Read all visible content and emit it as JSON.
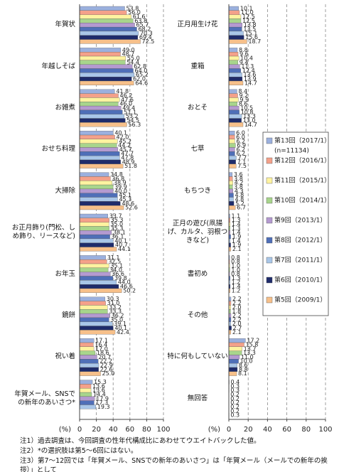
{
  "chart_data": [
    {
      "type": "bar",
      "orientation": "horizontal",
      "xlabel": "(%)",
      "xlim": [
        0,
        100
      ],
      "xticks": [
        0,
        20,
        40,
        60,
        80,
        100
      ],
      "grid": true,
      "categories": [
        "年賀状",
        "年越しそば",
        "お雑煮",
        "おせち料理",
        "大掃除",
        "お正月飾り(門松、し\nめ飾り、リースなど)",
        "お年玉",
        "鏡餅",
        "祝い着",
        "年賀メール、SNSで\nの新年のあいさつ*"
      ],
      "series": [
        {
          "color": "#9bb0de",
          "values": [
            53.8,
            49.0,
            41.8,
            40.1,
            34.8,
            33.7,
            31.1,
            30.3,
            17.1,
            15.3
          ],
          "value_labels": [
            "53.8",
            "49.0",
            "41.8",
            "40.1",
            "34.8",
            "33.7",
            "31.1",
            "30.3",
            "17.1",
            "15.3"
          ]
        },
        {
          "color": "#f4a18a",
          "values": [
            56.0,
            48.7,
            46.2,
            42.0,
            36.8,
            35.3,
            32.5,
            31.0,
            16.4,
            13.6
          ],
          "value_labels": [
            "56.0",
            "48.7",
            "46.2",
            "42.0",
            "36.8",
            "35.3",
            "32.5",
            "31.0",
            "16.4",
            "13.6"
          ]
        },
        {
          "color": "#fff3a0",
          "values": [
            61.6,
            55.0,
            47.6,
            45.2,
            38.9,
            35.0,
            35.1,
            33.2,
            17.0,
            13.6
          ],
          "value_labels": [
            "61.6",
            "55.0",
            "47.6",
            "45.2",
            "38.9",
            "35.0",
            "35.1",
            "33.2",
            "17.0",
            "13.6"
          ]
        },
        {
          "color": "#a8d58c",
          "values": [
            63.8,
            54.4,
            46.0,
            44.2,
            39.9,
            35.3,
            34.0,
            33.3,
            18.6,
            14.4
          ],
          "value_labels": [
            "63.8",
            "54.4",
            "46.0",
            "44.2",
            "39.9",
            "35.3",
            "34.0",
            "33.3",
            "18.6",
            "14.4"
          ]
        },
        {
          "color": "#b49ad0",
          "values": [
            65.7,
            62.8,
            49.4,
            45.7,
            40.0,
            38.1,
            36.6,
            36.2,
            20.7,
            17.9
          ],
          "value_labels": [
            "65.7",
            "62.8",
            "49.4",
            "45.7",
            "40.0",
            "38.1",
            "36.6",
            "36.2",
            "20.7",
            "17.9"
          ]
        },
        {
          "color": "#4f6fb8",
          "values": [
            68.2,
            64.0,
            51.1,
            47.7,
            45.1,
            36.1,
            39.8,
            35.0,
            22.2,
            17.3
          ],
          "value_labels": [
            "68.2",
            "64.0",
            "51.1",
            "47.7",
            "45.1",
            "36.1",
            "39.8",
            "35.0",
            "22.2",
            "17.3"
          ]
        },
        {
          "color": "#a9c6e8",
          "values": [
            70.3,
            65.2,
            53.2,
            47.8,
            45.3,
            40.1,
            44.0,
            39.1,
            22.9,
            19.3
          ],
          "value_labels": [
            "70.3",
            "65.2",
            "53.2",
            "47.8",
            "45.3",
            "40.1",
            "44.0",
            "39.1",
            "22.9",
            "19.3"
          ]
        },
        {
          "color": "#1f2c6b",
          "values": [
            69.4,
            62.0,
            54.5,
            48.9,
            48.6,
            40.7,
            46.6,
            40.1,
            22.6,
            null
          ],
          "value_labels": [
            "69.4",
            "62.0",
            "54.5",
            "48.9",
            "48.6",
            "40.7",
            "46.6",
            "40.1",
            "22.6",
            null
          ]
        },
        {
          "color": "#f7c08a",
          "values": [
            72.5,
            64.6,
            56.3,
            51.8,
            52.6,
            44.1,
            50.2,
            42.4,
            25.0,
            null
          ],
          "value_labels": [
            "72.5",
            "64.6",
            "56.3",
            "51.8",
            "52.6",
            "44.1",
            "50.2",
            "42.4",
            "25.0",
            null
          ]
        }
      ]
    },
    {
      "type": "bar",
      "orientation": "horizontal",
      "xlabel": "(%)",
      "xlim": [
        0,
        100
      ],
      "xticks": [
        0,
        20,
        40,
        60,
        80,
        100
      ],
      "grid": true,
      "legend": "right",
      "legend_note": "(n=11134)",
      "categories": [
        "正月用生け花",
        "重箱",
        "おとそ",
        "七草",
        "もちつき",
        "正月の遊び(凧揚\nげ、カルタ、羽根つ\nきなど)",
        "書初め",
        "その他",
        "特に何もしていない",
        "無回答"
      ],
      "series": [
        {
          "name": "第13回（2017/1）",
          "color": "#9bb0de",
          "values": [
            10.1,
            8.8,
            8.4,
            6.0,
            3.6,
            1.1,
            0.8,
            2.2,
            17.2,
            0.4
          ],
          "value_labels": [
            "10.1",
            "8.8",
            "8.4",
            "6.0",
            "3.6",
            "1.1",
            "0.8",
            "2.2",
            "17.2",
            "0.4"
          ]
        },
        {
          "name": "第12回（2016/1）",
          "color": "#f4a18a",
          "values": [
            11.0,
            9.6,
            9.2,
            6.0,
            3.8,
            1.3,
            0.8,
            2.2,
            15.8,
            0.3
          ],
          "value_labels": [
            "11.0",
            "9.6",
            "9.2",
            "6.0",
            "3.8",
            "1.3",
            "0.8",
            "2.2",
            "15.8",
            "0.3"
          ]
        },
        {
          "name": "第11回（2015/1）",
          "color": "#fff3a0",
          "values": [
            12.5,
            10.4,
            9.9,
            6.2,
            4.2,
            1.4,
            1.0,
            2.0,
            13.7,
            0.3
          ],
          "value_labels": [
            "12.5",
            "10.4",
            "9.9",
            "6.2",
            "4.2",
            "1.4",
            "1.0",
            "2.0",
            "13.7",
            "0.3"
          ]
        },
        {
          "name": "第10回（2014/1）",
          "color": "#a8d58c",
          "values": [
            12.5,
            9.4,
            8.6,
            6.9,
            3.8,
            1.3,
            1.0,
            1.8,
            13.3,
            0.2
          ],
          "value_labels": [
            "12.5",
            "9.4",
            "8.6",
            "6.9",
            "3.8",
            "1.3",
            "1.0",
            "1.8",
            "13.3",
            "0.2"
          ]
        },
        {
          "name": "第9回（2013/1）",
          "color": "#b49ad0",
          "values": [
            13.8,
            11.3,
            10.5,
            6.2,
            4.3,
            1.4,
            0.8,
            2.2,
            11.0,
            0.2
          ],
          "value_labels": [
            "13.8",
            "11.3",
            "10.5",
            "6.2",
            "4.3",
            "1.4",
            "0.8",
            "2.2",
            "11.0",
            "0.2"
          ]
        },
        {
          "name": "第8回（2012/1）",
          "color": "#4f6fb8",
          "values": [
            13.5,
            12.4,
            10.8,
            6.2,
            4.8,
            1.9,
            1.3,
            2.2,
            10.0,
            0.2
          ],
          "value_labels": [
            "13.5",
            "12.4",
            "10.8",
            "6.2",
            "4.8",
            "1.9",
            "1.3",
            "2.2",
            "10.0",
            "0.2"
          ]
        },
        {
          "name": "第7回（2011/1）",
          "color": "#a9c6e8",
          "values": [
            15.1,
            13.6,
            13.3,
            7.7,
            4.8,
            1.4,
            1.2,
            2.0,
            8.6,
            0.2
          ],
          "value_labels": [
            "15.1",
            "13.6",
            "13.3",
            "7.7",
            "4.8",
            "1.4",
            "1.2",
            "2.0",
            "8.6",
            "0.2"
          ]
        },
        {
          "name": "第6回（2010/1）",
          "color": "#1f2c6b",
          "values": [
            15.6,
            13.9,
            13.0,
            7.1,
            5.2,
            1.9,
            1.4,
            2.7,
            8.8,
            0.2
          ],
          "value_labels": [
            "15.6",
            "13.9",
            "13.0",
            "7.1",
            "5.2",
            "1.9",
            "1.4",
            "2.7",
            "8.8",
            "0.2"
          ]
        },
        {
          "name": "第5回（2009/1）",
          "color": "#f7c08a",
          "values": [
            18.7,
            14.7,
            14.7,
            7.5,
            6.7,
            2.1,
            1.2,
            2.1,
            8.1,
            0.3
          ],
          "value_labels": [
            "18.7",
            "14.7",
            "14.7",
            "7.5",
            "6.7",
            "2.1",
            "1.2",
            "2.1",
            "8.1",
            "0.3"
          ]
        }
      ]
    }
  ],
  "notes": [
    "注1）過去調査は、今回調査の性年代構成比にあわせてウエイトバックした値。",
    "注2）*の選択肢は第5～6回にはない。",
    "注3）第7～12回では「年賀メール、SNSでの新年のあいさつ」は「年賀メール（メールでの新年の挨拶）」として"
  ]
}
